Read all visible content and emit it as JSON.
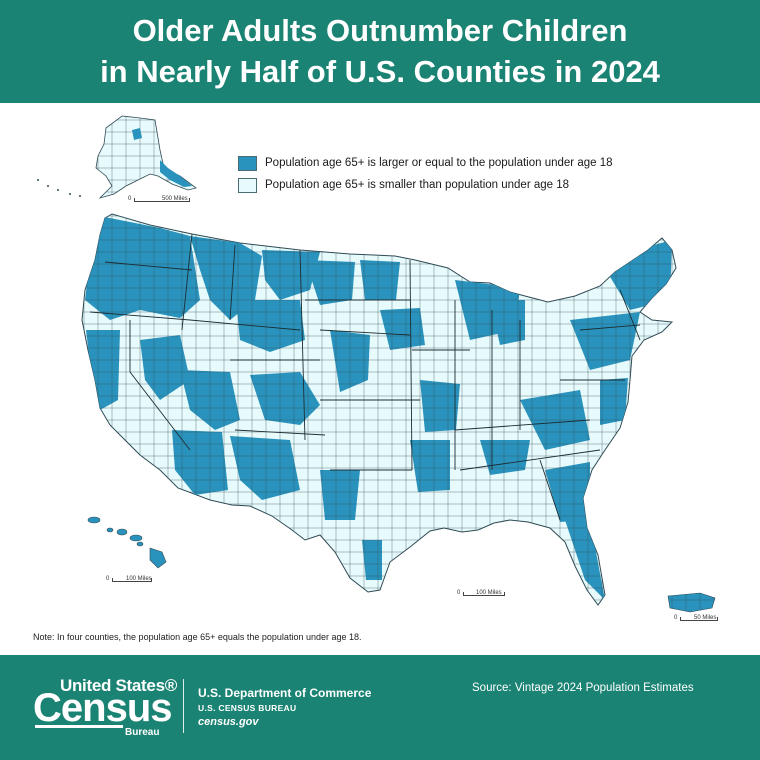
{
  "header": {
    "title_line1": "Older Adults Outnumber Children",
    "title_line2": "in Nearly Half of U.S. Counties in 2024"
  },
  "legend": {
    "items": [
      {
        "label": "Population age 65+ is larger or equal to the population under age 18",
        "color": "#2a93bd"
      },
      {
        "label": "Population age 65+ is smaller than population under age 18",
        "color": "#e8fbfc"
      }
    ]
  },
  "colors": {
    "brand": "#1b8373",
    "older_majority": "#2a93bd",
    "younger_majority": "#e8fbfc",
    "boundary": "#2f4a55"
  },
  "map": {
    "regions": [
      "Alaska",
      "Contiguous United States",
      "Hawaii",
      "Puerto Rico"
    ]
  },
  "scales": {
    "alaska": {
      "zero": "0",
      "label": "500 Miles"
    },
    "hawaii": {
      "zero": "0",
      "label": "100 Miles"
    },
    "conus": {
      "zero": "0",
      "label": "100 Miles"
    },
    "puerto_rico": {
      "zero": "0",
      "label": "50 Miles"
    }
  },
  "note": "Note: In four counties, the population age 65+ equals the population under age 18.",
  "footer": {
    "logo_top": "United States®",
    "logo_main": "Census",
    "logo_bottom": "Bureau",
    "department": "U.S. Department of Commerce",
    "bureau": "U.S. CENSUS BUREAU",
    "website": "census.gov",
    "source": "Source: Vintage 2024 Population Estimates"
  }
}
